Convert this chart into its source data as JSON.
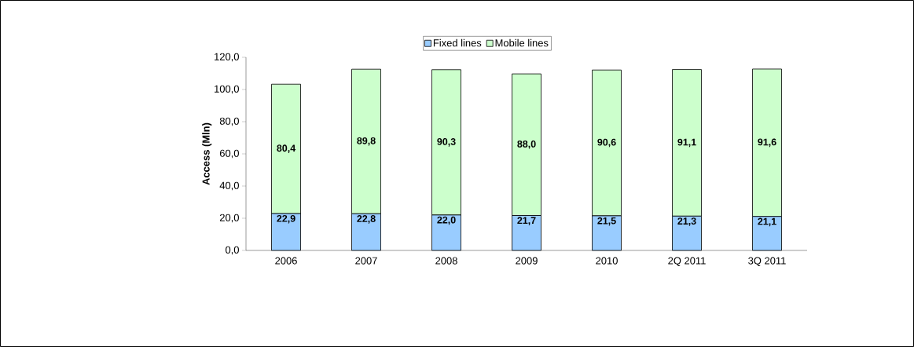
{
  "chart_data": {
    "type": "bar",
    "stacked": true,
    "ylabel": "Access  (Mln)",
    "categories": [
      "2006",
      "2007",
      "2008",
      "2009",
      "2010",
      "2Q 2011",
      "3Q 2011"
    ],
    "series": [
      {
        "name": "Fixed lines",
        "color": "#99ccff",
        "values": [
          22.9,
          22.8,
          22.0,
          21.7,
          21.5,
          21.3,
          21.1
        ],
        "value_labels": [
          "22,9",
          "22,8",
          "22,0",
          "21,7",
          "21,5",
          "21,3",
          "21,1"
        ]
      },
      {
        "name": "Mobile lines",
        "color": "#ccffcc",
        "values": [
          80.4,
          89.8,
          90.3,
          88.0,
          90.6,
          91.1,
          91.6
        ],
        "value_labels": [
          "80,4",
          "89,8",
          "90,3",
          "88,0",
          "90,6",
          "91,1",
          "91,6"
        ]
      }
    ],
    "ylim": [
      0,
      120
    ],
    "yticks": [
      {
        "value": 0,
        "label": "0,0"
      },
      {
        "value": 20,
        "label": "20,0"
      },
      {
        "value": 40,
        "label": "40,0"
      },
      {
        "value": 60,
        "label": "60,0"
      },
      {
        "value": 80,
        "label": "80,0"
      },
      {
        "value": 100,
        "label": "100,0"
      },
      {
        "value": 120,
        "label": "120,0"
      }
    ],
    "grid": false,
    "legend": "top"
  }
}
